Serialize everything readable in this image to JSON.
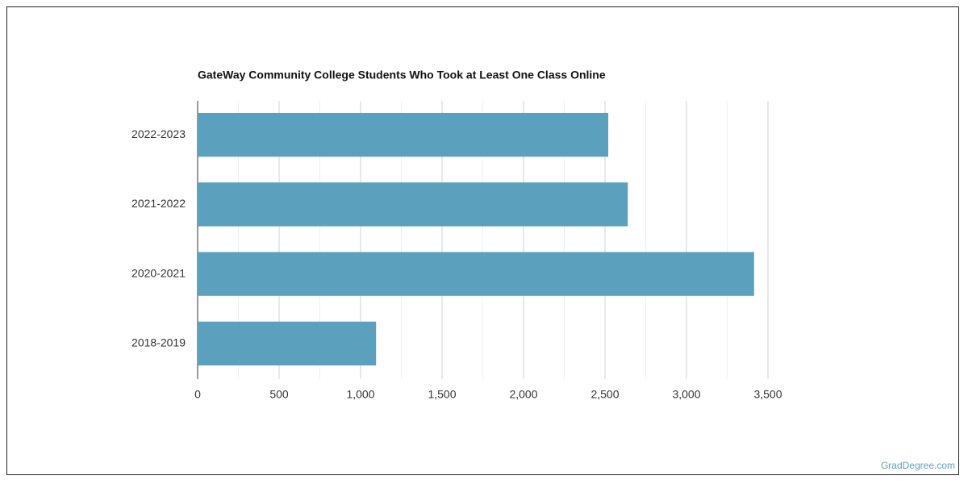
{
  "chart_data": {
    "type": "bar",
    "orientation": "horizontal",
    "title": "GateWay Community College Students Who Took at Least One Class Online",
    "categories": [
      "2022-2023",
      "2021-2022",
      "2020-2021",
      "2018-2019"
    ],
    "values": [
      2520,
      2640,
      3415,
      1095
    ],
    "color": "#5ba1bd",
    "xlim": [
      0,
      3500
    ],
    "xticks": [
      0,
      500,
      {
        "value": 1000,
        "label": "1,000"
      },
      {
        "value": 1500,
        "label": "1,500"
      },
      {
        "value": 2000,
        "label": "2,000"
      },
      {
        "value": 2500,
        "label": "2,500"
      },
      {
        "value": 3000,
        "label": "3,000"
      },
      {
        "value": 3500,
        "label": "3,500"
      }
    ],
    "minor_gridlines": [
      250,
      750,
      1250,
      1750,
      2250,
      2750,
      3250
    ],
    "grid": true,
    "watermark": "GradDegree.com"
  }
}
